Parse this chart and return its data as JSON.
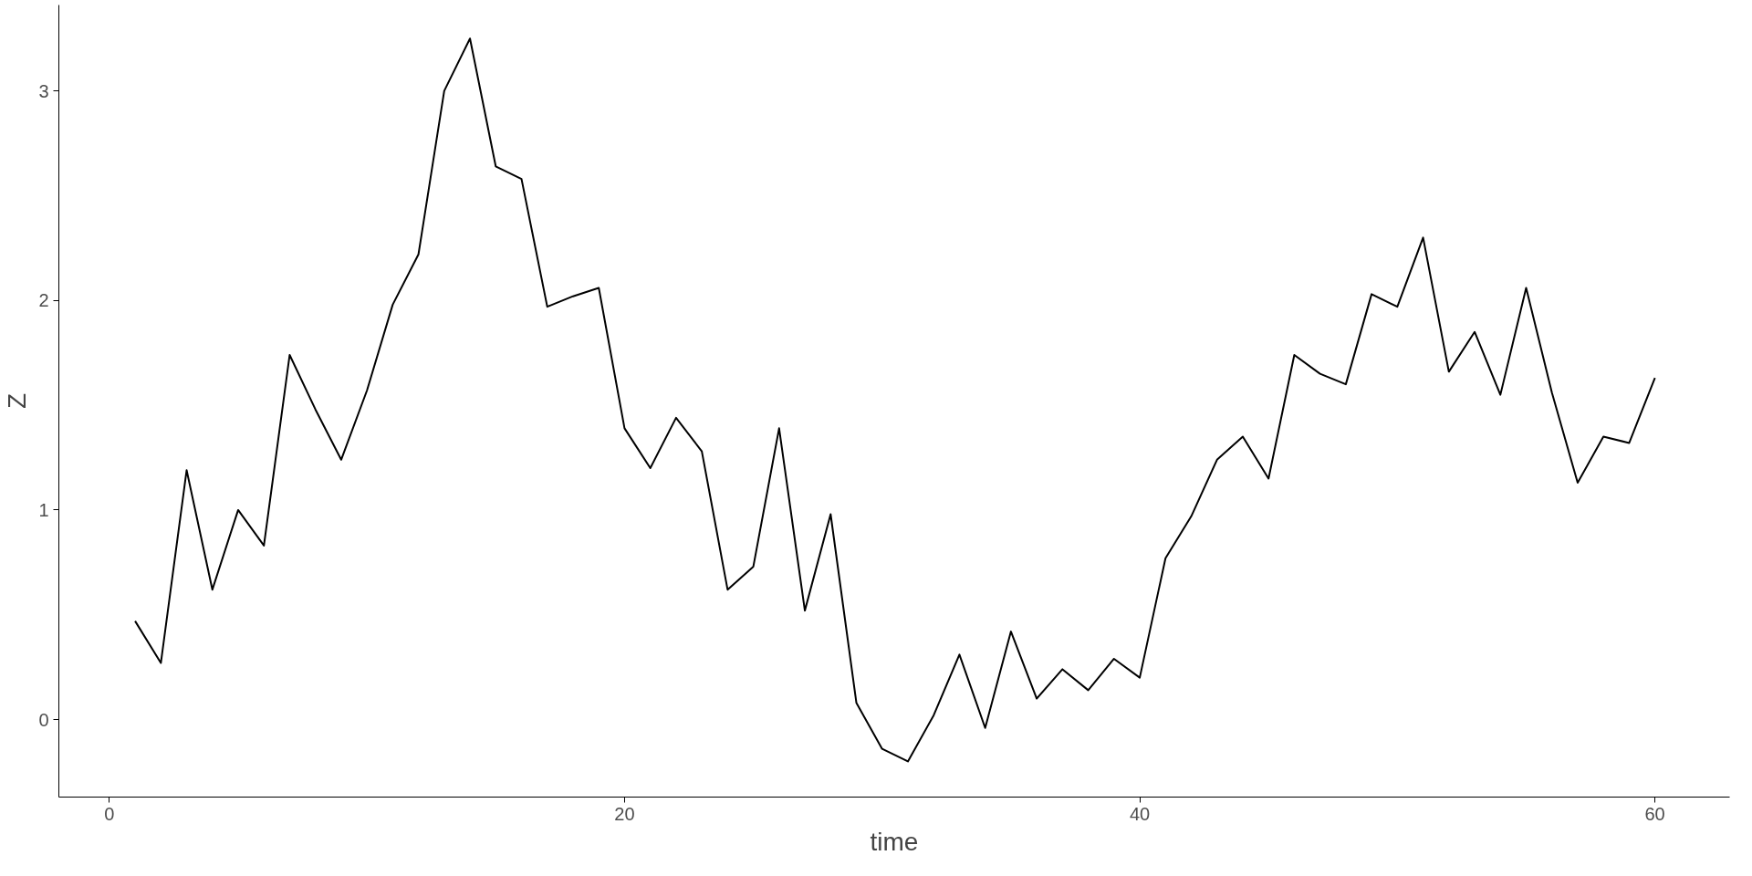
{
  "chart_data": {
    "type": "line",
    "xlabel": "time",
    "ylabel": "Z",
    "x": [
      1,
      2,
      3,
      4,
      5,
      6,
      7,
      8,
      9,
      10,
      11,
      12,
      13,
      14,
      15,
      16,
      17,
      18,
      19,
      20,
      21,
      22,
      23,
      24,
      25,
      26,
      27,
      28,
      29,
      30,
      31,
      32,
      33,
      34,
      35,
      36,
      37,
      38,
      39,
      40,
      41,
      42,
      43,
      44,
      45,
      46,
      47,
      48,
      49,
      50,
      51,
      52,
      53,
      54,
      55,
      56,
      57,
      58,
      59,
      60
    ],
    "series": [
      {
        "color": "#000000",
        "values": [
          0.47,
          0.27,
          1.19,
          0.62,
          1.0,
          0.83,
          1.74,
          1.48,
          1.24,
          1.57,
          1.98,
          2.22,
          3.0,
          3.25,
          2.64,
          2.58,
          1.97,
          2.02,
          2.06,
          1.39,
          1.2,
          1.44,
          1.28,
          0.62,
          0.73,
          1.39,
          0.52,
          0.98,
          0.08,
          -0.14,
          -0.2,
          0.02,
          0.31,
          -0.04,
          0.42,
          0.1,
          0.24,
          0.14,
          0.29,
          0.2,
          0.77,
          0.97,
          1.24,
          1.35,
          1.15,
          1.74,
          1.65,
          1.6,
          2.03,
          1.97,
          2.3,
          1.66,
          1.85,
          1.55,
          2.06,
          1.56,
          1.13,
          1.35,
          1.32,
          1.63
        ]
      }
    ],
    "xlim": [
      -1.96,
      62.9
    ],
    "ylim": [
      -0.37,
      3.41
    ],
    "xticks": [
      0,
      20,
      40,
      60
    ],
    "yticks": [
      0,
      1,
      2,
      3
    ],
    "grid": false,
    "marker": "none",
    "line_style": "solid"
  }
}
